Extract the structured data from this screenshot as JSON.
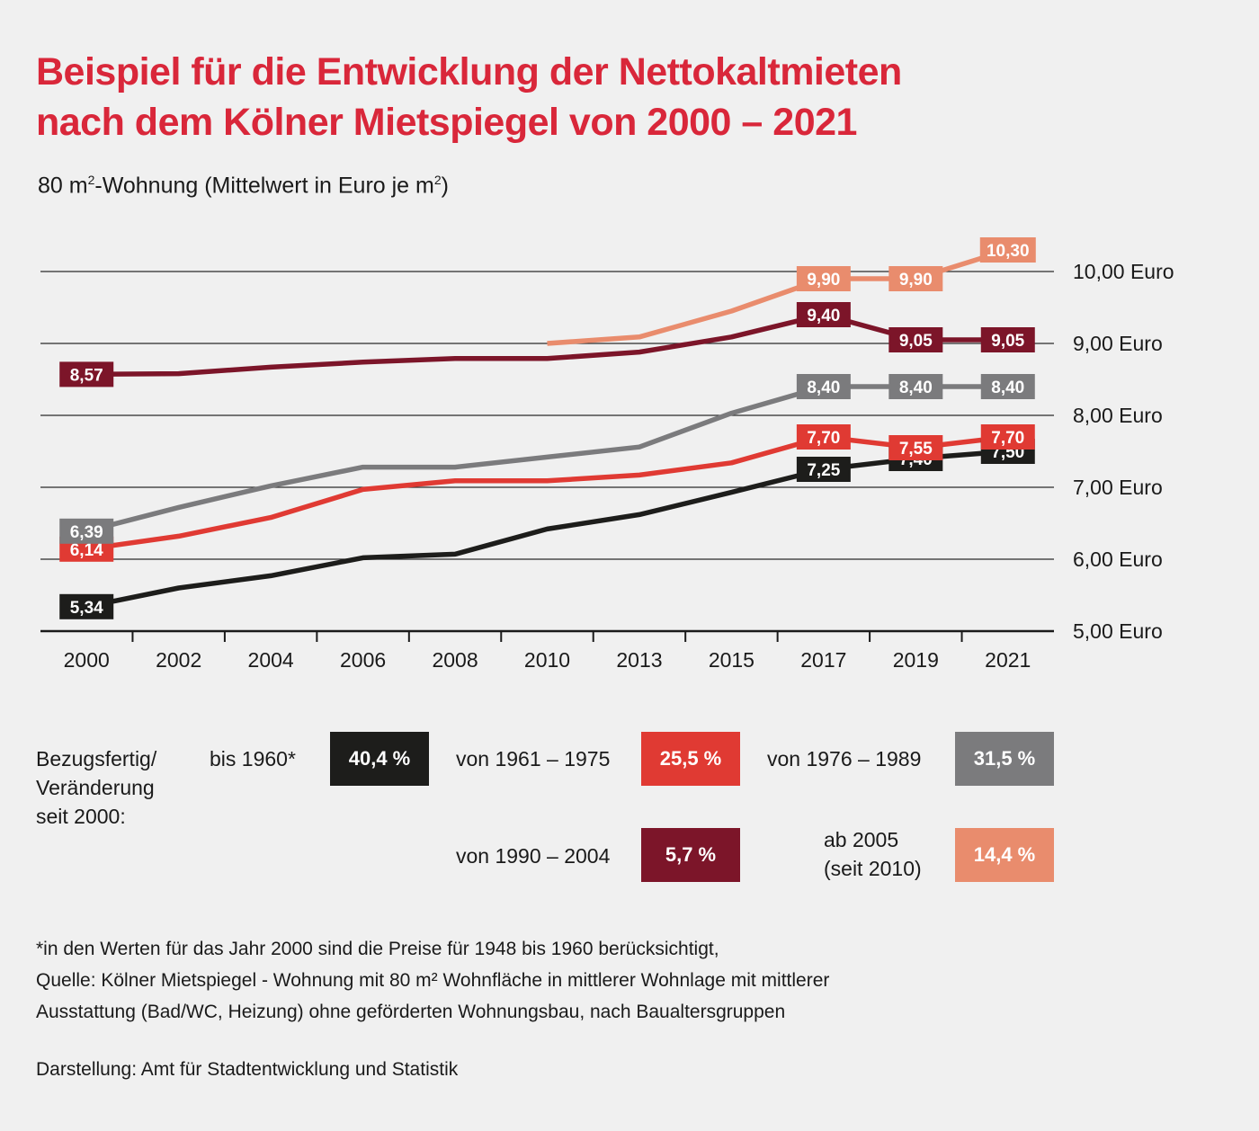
{
  "title": {
    "line1": "Beispiel für die Entwicklung der Nettokaltmieten",
    "line2": "nach dem Kölner Mietspiegel von 2000 – 2021"
  },
  "subtitle": {
    "prefix": "80 m",
    "sup1": "2",
    "middle": "-Wohnung (Mittelwert in Euro je m",
    "sup2": "2",
    "suffix": ")"
  },
  "chart_data": {
    "type": "line",
    "categories": [
      "2000",
      "2002",
      "2004",
      "2006",
      "2008",
      "2010",
      "2013",
      "2015",
      "2017",
      "2019",
      "2021"
    ],
    "ylim": [
      5,
      10
    ],
    "y_ticks": [
      {
        "value": 10,
        "label": "10,00 Euro"
      },
      {
        "value": 9,
        "label": "9,00 Euro"
      },
      {
        "value": 8,
        "label": "8,00 Euro"
      },
      {
        "value": 7,
        "label": "7,00 Euro"
      },
      {
        "value": 6,
        "label": "6,00 Euro"
      },
      {
        "value": 5,
        "label": "5,00 Euro"
      }
    ],
    "series": [
      {
        "name": "bis 1960*",
        "color": "#1d1d1b",
        "values": [
          5.34,
          5.6,
          5.77,
          6.02,
          6.07,
          6.42,
          6.62,
          6.93,
          7.25,
          7.4,
          7.5
        ],
        "labels": [
          {
            "index": 0,
            "text": "5,34"
          },
          {
            "index": 8,
            "text": "7,25"
          },
          {
            "index": 9,
            "text": "7,40"
          },
          {
            "index": 10,
            "text": "7,50"
          }
        ]
      },
      {
        "name": "von 1961 – 1975",
        "color": "#e03a33",
        "values": [
          6.14,
          6.32,
          6.58,
          6.97,
          7.09,
          7.09,
          7.17,
          7.34,
          7.7,
          7.55,
          7.7
        ],
        "labels": [
          {
            "index": 0,
            "text": "6,14"
          },
          {
            "index": 8,
            "text": "7,70"
          },
          {
            "index": 9,
            "text": "7,55"
          },
          {
            "index": 10,
            "text": "7,70"
          }
        ]
      },
      {
        "name": "von 1976 – 1989",
        "color": "#7b7b7d",
        "values": [
          6.39,
          6.72,
          7.02,
          7.28,
          7.28,
          7.42,
          7.56,
          8.03,
          8.4,
          8.4,
          8.4
        ],
        "labels": [
          {
            "index": 0,
            "text": "6,39"
          },
          {
            "index": 8,
            "text": "8,40"
          },
          {
            "index": 9,
            "text": "8,40"
          },
          {
            "index": 10,
            "text": "8,40"
          }
        ]
      },
      {
        "name": "von 1990 – 2004",
        "color": "#7c1529",
        "values": [
          8.57,
          8.58,
          8.67,
          8.74,
          8.79,
          8.79,
          8.88,
          9.09,
          9.4,
          9.05,
          9.05
        ],
        "labels": [
          {
            "index": 0,
            "text": "8,57"
          },
          {
            "index": 8,
            "text": "9,40"
          },
          {
            "index": 9,
            "text": "9,05"
          },
          {
            "index": 10,
            "text": "9,05"
          }
        ]
      },
      {
        "name": "ab 2005 (seit 2010)",
        "color": "#e98c6d",
        "values": [
          null,
          null,
          null,
          null,
          null,
          9.0,
          9.09,
          9.45,
          9.9,
          9.9,
          10.3
        ],
        "labels": [
          {
            "index": 8,
            "text": "9,90"
          },
          {
            "index": 9,
            "text": "9,90"
          },
          {
            "index": 10,
            "text": "10,30"
          }
        ]
      }
    ]
  },
  "legend": {
    "heading_line1": "Bezugsfertig/",
    "heading_line2": "Veränderung",
    "heading_line3": "seit 2000:",
    "items": [
      {
        "label": "bis 1960*",
        "value": "40,4 %",
        "color": "#1d1d1b"
      },
      {
        "label": "von 1961 – 1975",
        "value": "25,5 %",
        "color": "#e03a33"
      },
      {
        "label": "von 1976 – 1989",
        "value": "31,5 %",
        "color": "#7b7b7d"
      },
      {
        "label": "von 1990 – 2004",
        "value": "5,7 %",
        "color": "#7c1529"
      },
      {
        "label_line1": "ab 2005",
        "label_line2": "(seit 2010)",
        "value": "14,4 %",
        "color": "#e98c6d"
      }
    ]
  },
  "notes": {
    "line1": "*in den Werten für das Jahr 2000 sind die Preise für 1948 bis 1960 berücksichtigt,",
    "line2": "Quelle: Kölner Mietspiegel - Wohnung mit 80 m² Wohnfläche in mittlerer Wohnlage mit mittlerer",
    "line3": "Ausstattung (Bad/WC, Heizung) ohne geförderten Wohnungsbau, nach Baualtersgruppen"
  },
  "credit": "Darstellung: Amt für Stadtentwicklung und Statistik"
}
